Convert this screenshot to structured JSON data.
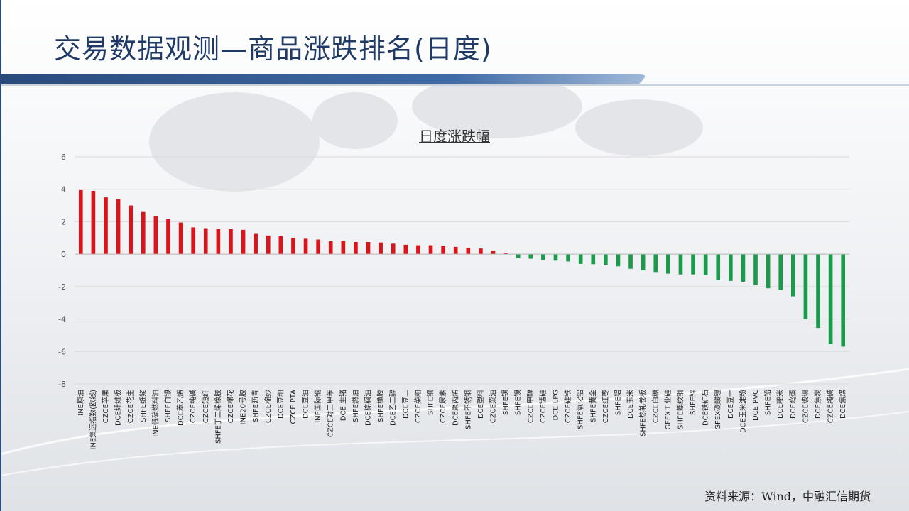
{
  "slide": {
    "title": "交易数据观测—商品涨跌排名(日度)",
    "source": "资料来源：Wind，中融汇信期货"
  },
  "colors": {
    "positive": "#d9141b",
    "negative": "#1a9a4a",
    "title": "#1f3a66"
  },
  "chart_data": {
    "type": "bar",
    "title": "日度涨跌幅",
    "xlabel": "",
    "ylabel": "",
    "ylim": [
      -8,
      6
    ],
    "yticks": [
      -8,
      -6,
      -4,
      -2,
      0,
      2,
      4,
      6
    ],
    "grid": true,
    "categories": [
      "INE原油",
      "INE集运指数(欧线)",
      "CZCE苹果",
      "DCE纤维板",
      "CZCE花生",
      "SHFE纸浆",
      "INE低硫燃料油",
      "SHFE白银",
      "DCE苯乙烯",
      "CZCE纯碱",
      "CZCE短纤",
      "SHFE丁二烯橡胶",
      "CZCE棉花",
      "INE20号胶",
      "SHFE沥青",
      "CZCE棉纱",
      "DCE豆粕",
      "CZCE PTA",
      "DCE豆油",
      "INE国际铜",
      "CZCE对二甲苯",
      "DCE 生猪",
      "SHFE燃油",
      "DCE棕榈油",
      "SHFE橡胶",
      "DCE乙二醇",
      "DCE豆二",
      "CZCE菜粕",
      "SHFE铜",
      "CZCE尿素",
      "DCE聚丙烯",
      "SHFE不锈钢",
      "DCE塑料",
      "CZCE菜油",
      "SHFE锡",
      "SHFE镍",
      "CZCE甲醇",
      "CZCE锰硅",
      "DCE LPG",
      "CZCE硅铁",
      "SHFE氧化铝",
      "SHFE黄金",
      "CZCE红枣",
      "SHFE铝",
      "DCE玉米",
      "SHFE热轧卷板",
      "CZCE白糖",
      "GFEX工业硅",
      "SHFE螺纹钢",
      "SHFE锌",
      "DCE铁矿石",
      "GFEX碳酸锂",
      "DCE豆一",
      "DCE玉米淀粉",
      "DCE PVC",
      "SHFE铅",
      "DCE粳米",
      "DCE鸡蛋",
      "CZCE玻璃",
      "DCE焦炭",
      "CZCE纯碱",
      "DCE焦煤"
    ],
    "values": [
      3.95,
      3.9,
      3.5,
      3.4,
      3.0,
      2.6,
      2.35,
      2.15,
      1.95,
      1.65,
      1.6,
      1.55,
      1.55,
      1.5,
      1.25,
      1.15,
      1.1,
      1.0,
      0.95,
      0.9,
      0.8,
      0.8,
      0.75,
      0.75,
      0.72,
      0.65,
      0.58,
      0.55,
      0.55,
      0.52,
      0.45,
      0.38,
      0.35,
      0.22,
      0.05,
      -0.25,
      -0.28,
      -0.35,
      -0.4,
      -0.45,
      -0.6,
      -0.62,
      -0.65,
      -0.75,
      -0.9,
      -1.0,
      -1.1,
      -1.2,
      -1.25,
      -1.25,
      -1.3,
      -1.6,
      -1.65,
      -1.7,
      -1.9,
      -2.1,
      -2.2,
      -2.6,
      -4.0,
      -4.55,
      -5.55,
      -5.7
    ]
  }
}
